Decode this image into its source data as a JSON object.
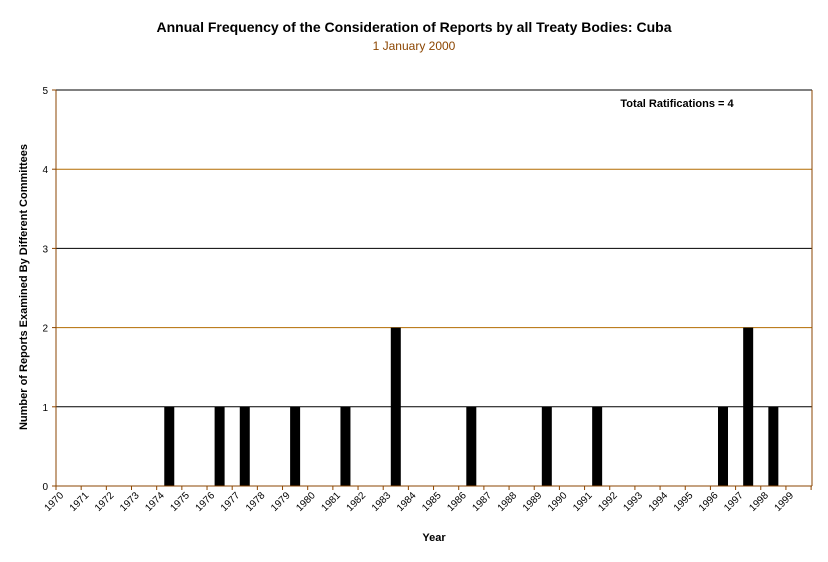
{
  "chart_data": {
    "type": "bar",
    "title": "Annual Frequency of the Consideration of Reports by all Treaty Bodies: Cuba",
    "subtitle": "1 January 2000",
    "xlabel": "Year",
    "ylabel": "Number of Reports Examined By Different Committees",
    "annotation": "Total Ratifications = 4",
    "ylim": [
      0,
      5
    ],
    "yticks": [
      "0",
      "1",
      "2",
      "3",
      "4",
      "5"
    ],
    "grid": true,
    "categories": [
      "1970",
      "1971",
      "1972",
      "1973",
      "1974",
      "1975",
      "1976",
      "1977",
      "1978",
      "1979",
      "1980",
      "1981",
      "1982",
      "1983",
      "1984",
      "1985",
      "1986",
      "1987",
      "1988",
      "1989",
      "1990",
      "1991",
      "1992",
      "1993",
      "1994",
      "1995",
      "1996",
      "1997",
      "1998",
      "1999"
    ],
    "bars": [
      {
        "x": 1974.5,
        "value": 1
      },
      {
        "x": 1976.5,
        "value": 1
      },
      {
        "x": 1977.5,
        "value": 1
      },
      {
        "x": 1979.5,
        "value": 1
      },
      {
        "x": 1981.5,
        "value": 1
      },
      {
        "x": 1983.5,
        "value": 2
      },
      {
        "x": 1986.5,
        "value": 1
      },
      {
        "x": 1989.5,
        "value": 1
      },
      {
        "x": 1991.5,
        "value": 1
      },
      {
        "x": 1996.5,
        "value": 1
      },
      {
        "x": 1997.5,
        "value": 2
      },
      {
        "x": 1998.5,
        "value": 1
      }
    ],
    "colors": {
      "bar": "#000000",
      "gridline_primary": "#000000",
      "gridline_secondary": "#b36b00",
      "subtitle": "#8b4500",
      "axis": "#8b4500",
      "background": "#ffffff"
    }
  }
}
